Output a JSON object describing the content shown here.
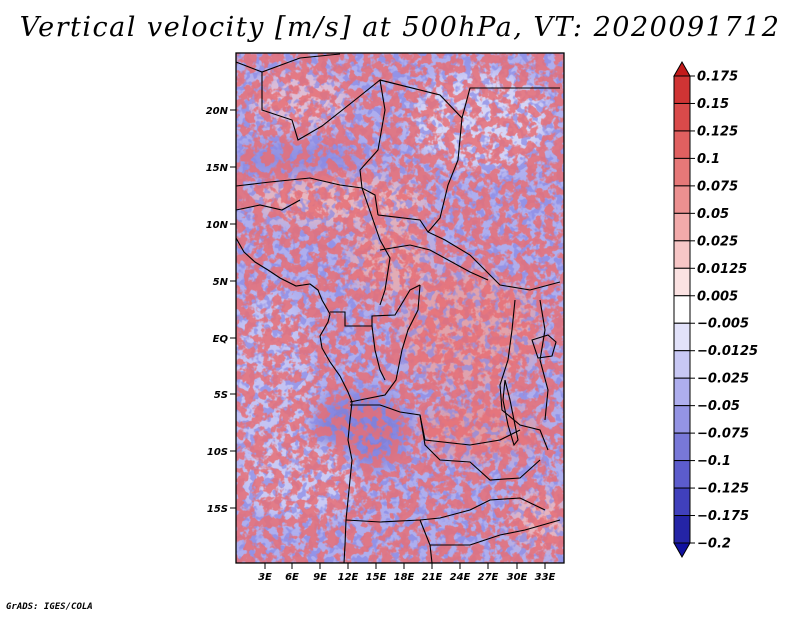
{
  "title": "Vertical velocity [m/s] at 500hPa, VT: 2020091712",
  "footer": "GrADS: IGES/COLA",
  "map": {
    "variable": "Vertical velocity",
    "units": "m/s",
    "level": "500hPa",
    "valid_time": "2020091712",
    "lat_labels": [
      "20N",
      "15N",
      "10N",
      "5N",
      "EQ",
      "5S",
      "10S",
      "15S"
    ],
    "lon_labels": [
      "3E",
      "6E",
      "9E",
      "12E",
      "15E",
      "18E",
      "21E",
      "24E",
      "27E",
      "30E",
      "33E"
    ]
  },
  "colorbar": {
    "labels": [
      "0.175",
      "0.15",
      "0.125",
      "0.1",
      "0.075",
      "0.05",
      "0.025",
      "0.0125",
      "0.005",
      "−0.005",
      "−0.0125",
      "−0.025",
      "−0.05",
      "−0.075",
      "−0.1",
      "−0.125",
      "−0.175",
      "−0.2"
    ],
    "colors": [
      "#c21a1a",
      "#cf3434",
      "#d94a4a",
      "#e06060",
      "#e67878",
      "#ec9090",
      "#f2aaaa",
      "#f7c6c6",
      "#fbe2e2",
      "#ffffff",
      "#e2e2fa",
      "#c8c8f4",
      "#aeaeee",
      "#9494e4",
      "#7878d8",
      "#5c5ccc",
      "#4040bc",
      "#2424a6",
      "#1010a0"
    ]
  }
}
